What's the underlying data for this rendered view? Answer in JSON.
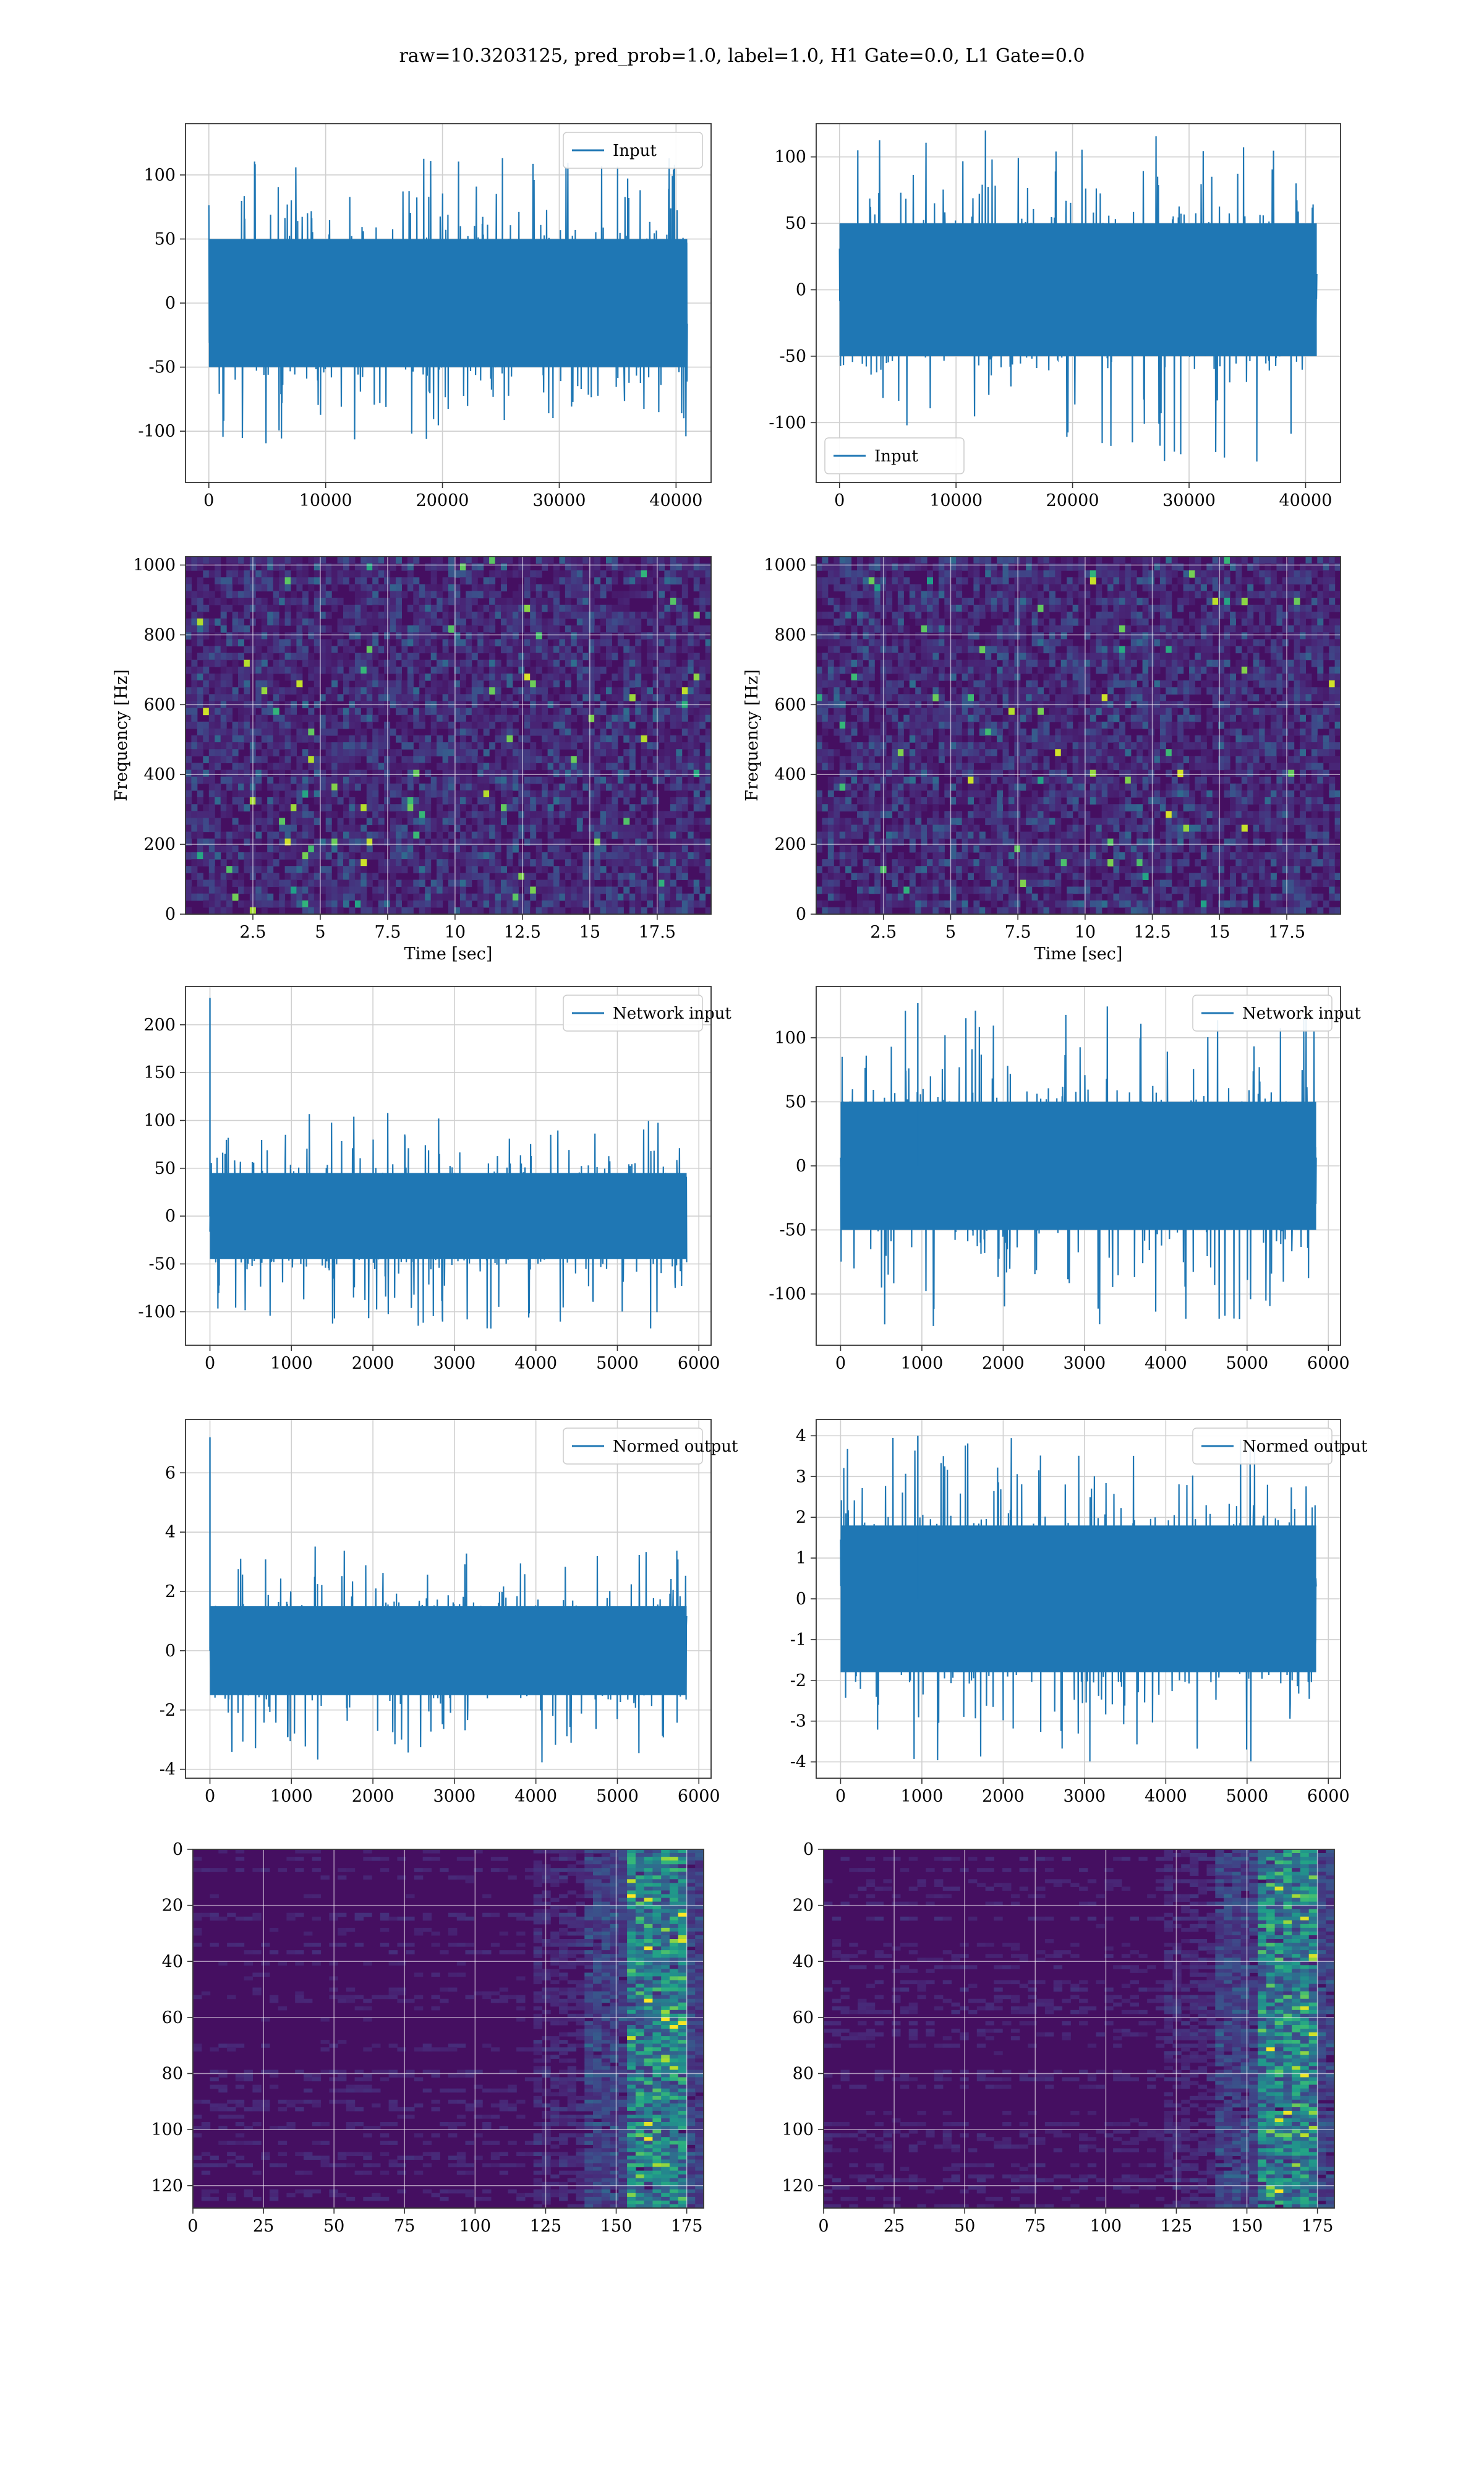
{
  "figure": {
    "suptitle": "raw=10.3203125, pred_prob=1.0, label=1.0, H1 Gate=0.0, L1 Gate=0.0",
    "line_color": "#1f77b4",
    "colormap": "viridis"
  },
  "chart_data": [
    {
      "id": "input-h1",
      "type": "line",
      "title": "",
      "xlabel": "",
      "ylabel": "",
      "xlim": [
        -2000,
        43000
      ],
      "ylim": [
        -140,
        140
      ],
      "xticks": [
        0,
        10000,
        20000,
        30000,
        40000
      ],
      "yticks": [
        -100,
        -50,
        0,
        50,
        100
      ],
      "grid": true,
      "legend": "top-right",
      "series": [
        {
          "name": "Input",
          "x_range": [
            0,
            40960
          ],
          "band": [
            -50,
            50
          ],
          "extremes": [
            -110,
            115
          ]
        }
      ]
    },
    {
      "id": "input-l1",
      "type": "line",
      "title": "",
      "xlabel": "",
      "ylabel": "",
      "xlim": [
        -2000,
        43000
      ],
      "ylim": [
        -145,
        125
      ],
      "xticks": [
        0,
        10000,
        20000,
        30000,
        40000
      ],
      "yticks": [
        -100,
        -50,
        0,
        50,
        100
      ],
      "grid": true,
      "legend": "bottom-left",
      "series": [
        {
          "name": "Input",
          "x_range": [
            0,
            40960
          ],
          "band": [
            -50,
            50
          ],
          "extremes": [
            -130,
            120
          ]
        }
      ]
    },
    {
      "id": "spectrogram-h1",
      "type": "heatmap",
      "title": "",
      "xlabel": "Time [sec]",
      "ylabel": "Frequency [Hz]",
      "xlim": [
        0,
        19.5
      ],
      "ylim": [
        0,
        1024
      ],
      "xticks": [
        2.5,
        5.0,
        7.5,
        10.0,
        12.5,
        15.0,
        17.5
      ],
      "yticks": [
        0,
        200,
        400,
        600,
        800,
        1000
      ],
      "grid": true
    },
    {
      "id": "spectrogram-l1",
      "type": "heatmap",
      "title": "",
      "xlabel": "Time [sec]",
      "ylabel": "Frequency [Hz]",
      "xlim": [
        0,
        19.5
      ],
      "ylim": [
        0,
        1024
      ],
      "xticks": [
        2.5,
        5.0,
        7.5,
        10.0,
        12.5,
        15.0,
        17.5
      ],
      "yticks": [
        0,
        200,
        400,
        600,
        800,
        1000
      ],
      "grid": true
    },
    {
      "id": "network-input-h1",
      "type": "line",
      "title": "",
      "xlabel": "",
      "ylabel": "",
      "xlim": [
        -300,
        6150
      ],
      "ylim": [
        -135,
        240
      ],
      "xticks": [
        0,
        1000,
        2000,
        3000,
        4000,
        5000,
        6000
      ],
      "yticks": [
        -100,
        -50,
        0,
        50,
        100,
        150,
        200
      ],
      "grid": true,
      "legend": "top-right",
      "series": [
        {
          "name": "Network input",
          "x_range": [
            0,
            5850
          ],
          "band": [
            -45,
            45
          ],
          "extremes": [
            -120,
            110
          ],
          "spike": {
            "x": 0,
            "y": 228
          }
        }
      ]
    },
    {
      "id": "network-input-l1",
      "type": "line",
      "title": "",
      "xlabel": "",
      "ylabel": "",
      "xlim": [
        -300,
        6150
      ],
      "ylim": [
        -140,
        140
      ],
      "xticks": [
        0,
        1000,
        2000,
        3000,
        4000,
        5000,
        6000
      ],
      "yticks": [
        -100,
        -50,
        0,
        50,
        100
      ],
      "grid": true,
      "legend": "top-right",
      "series": [
        {
          "name": "Network input",
          "x_range": [
            0,
            5850
          ],
          "band": [
            -50,
            50
          ],
          "extremes": [
            -125,
            125
          ],
          "spike": {
            "x": 950,
            "y": 127
          }
        }
      ]
    },
    {
      "id": "normed-output-h1",
      "type": "line",
      "title": "",
      "xlabel": "",
      "ylabel": "",
      "xlim": [
        -300,
        6150
      ],
      "ylim": [
        -4.3,
        7.8
      ],
      "xticks": [
        0,
        1000,
        2000,
        3000,
        4000,
        5000,
        6000
      ],
      "yticks": [
        -4,
        -2,
        0,
        2,
        4,
        6
      ],
      "grid": true,
      "legend": "top-right",
      "series": [
        {
          "name": "Normed output",
          "x_range": [
            0,
            5850
          ],
          "band": [
            -1.5,
            1.5
          ],
          "extremes": [
            -3.9,
            3.6
          ],
          "spike": {
            "x": 0,
            "y": 7.2
          }
        }
      ]
    },
    {
      "id": "normed-output-l1",
      "type": "line",
      "title": "",
      "xlabel": "",
      "ylabel": "",
      "xlim": [
        -300,
        6150
      ],
      "ylim": [
        -4.4,
        4.4
      ],
      "xticks": [
        0,
        1000,
        2000,
        3000,
        4000,
        5000,
        6000
      ],
      "yticks": [
        -4,
        -3,
        -2,
        -1,
        0,
        1,
        2,
        3,
        4
      ],
      "grid": true,
      "legend": "top-right",
      "series": [
        {
          "name": "Normed output",
          "x_range": [
            0,
            5850
          ],
          "band": [
            -1.8,
            1.8
          ],
          "extremes": [
            -4.0,
            4.0
          ],
          "spike": {
            "x": 950,
            "y": 4.0
          }
        }
      ]
    },
    {
      "id": "output-map-h1",
      "type": "heatmap",
      "title": "",
      "xlabel": "",
      "ylabel": "",
      "xlim": [
        0,
        181
      ],
      "ylim": [
        128,
        0
      ],
      "xticks": [
        0,
        25,
        50,
        75,
        100,
        125,
        150,
        175
      ],
      "yticks": [
        0,
        20,
        40,
        60,
        80,
        100,
        120
      ],
      "grid": true,
      "hot_columns": [
        155,
        175
      ]
    },
    {
      "id": "output-map-l1",
      "type": "heatmap",
      "title": "",
      "xlabel": "",
      "ylabel": "",
      "xlim": [
        0,
        181
      ],
      "ylim": [
        128,
        0
      ],
      "xticks": [
        0,
        25,
        50,
        75,
        100,
        125,
        150,
        175
      ],
      "yticks": [
        0,
        20,
        40,
        60,
        80,
        100,
        120
      ],
      "grid": true,
      "hot_columns": [
        155,
        175
      ]
    }
  ]
}
